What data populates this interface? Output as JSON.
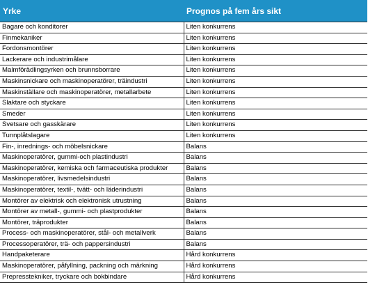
{
  "table": {
    "headers": [
      "Yrke",
      "Prognos på fem års sikt"
    ],
    "rows": [
      [
        "Bagare och konditorer",
        "Liten konkurrens"
      ],
      [
        "Finmekaniker",
        "Liten konkurrens"
      ],
      [
        "Fordonsmontörer",
        "Liten konkurrens"
      ],
      [
        "Lackerare och industrimålare",
        "Liten konkurrens"
      ],
      [
        "Malmförädlingsyrken och brunnsborrare",
        "Liten konkurrens"
      ],
      [
        "Maskinsnickare och maskinoperatörer, träindustri",
        "Liten konkurrens"
      ],
      [
        "Maskinställare och maskinoperatörer, metallarbete",
        "Liten konkurrens"
      ],
      [
        "Slaktare och styckare",
        "Liten konkurrens"
      ],
      [
        "Smeder",
        "Liten konkurrens"
      ],
      [
        "Svetsare och gasskärare",
        "Liten konkurrens"
      ],
      [
        "Tunnplåtslagare",
        "Liten konkurrens"
      ],
      [
        "Fin-, inrednings- och möbelsnickare",
        "Balans"
      ],
      [
        "Maskinoperatörer, gummi-och plastindustri",
        "Balans"
      ],
      [
        "Maskinoperatörer, kemiska och farmaceutiska produkter",
        "Balans"
      ],
      [
        "Maskinoperatörer, livsmedelsindustri",
        "Balans"
      ],
      [
        "Maskinoperatörer, textil-, tvätt- och läderindustri",
        "Balans"
      ],
      [
        "Montörer av elektrisk och elektronisk utrustning",
        "Balans"
      ],
      [
        "Montörer av metall-, gummi- och plastprodukter",
        "Balans"
      ],
      [
        "Montörer, träprodukter",
        "Balans"
      ],
      [
        "Process- och maskinoperatörer, stål- och metallverk",
        "Balans"
      ],
      [
        "Processoperatörer, trä- och pappersindustri",
        "Balans"
      ],
      [
        "Handpaketerare",
        "Hård konkurrens"
      ],
      [
        "Maskinoperatörer, påfyllning, packning och märkning",
        "Hård konkurrens"
      ],
      [
        "Prepresstekniker, tryckare och bokbindare",
        "Hård konkurrens"
      ]
    ]
  },
  "colors": {
    "header_bg": "#1f91c7",
    "header_text": "#ffffff",
    "grid": "#333333"
  }
}
